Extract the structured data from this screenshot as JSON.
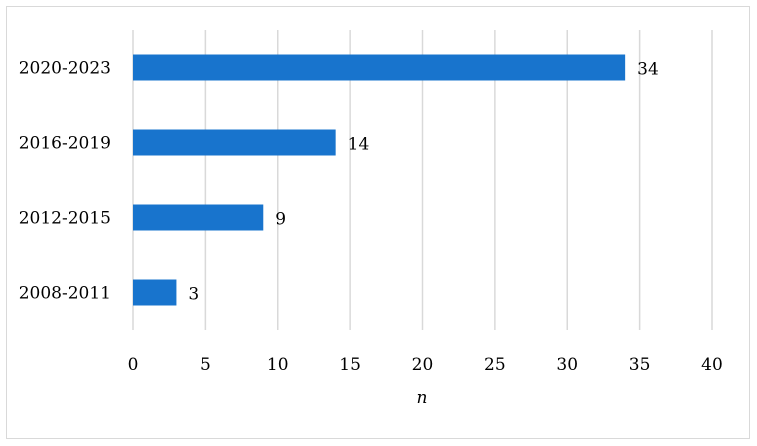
{
  "chart_data": {
    "type": "bar",
    "orientation": "horizontal",
    "categories": [
      "2020-2023",
      "2016-2019",
      "2012-2015",
      "2008-2011"
    ],
    "values": [
      34,
      14,
      9,
      3
    ],
    "data_labels": [
      "34",
      "14",
      "9",
      "3"
    ],
    "xlabel": "n",
    "xlim": [
      0,
      40
    ],
    "xticks": [
      0,
      5,
      10,
      15,
      20,
      25,
      30,
      35,
      40
    ],
    "grid": "vertical",
    "bar_color": "#1874cd",
    "grid_color": "#d9d9d9"
  }
}
